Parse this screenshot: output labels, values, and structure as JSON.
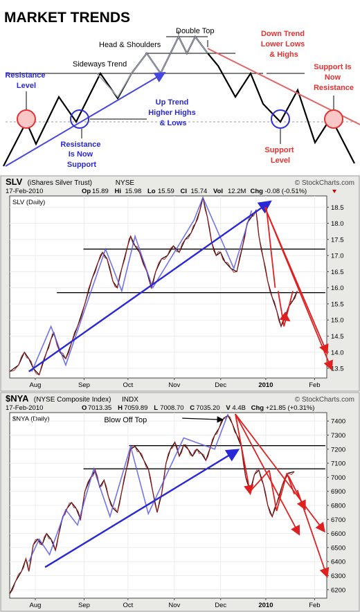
{
  "title": "MARKET TRENDS",
  "diagram": {
    "labels": {
      "double_top": "Double Top",
      "head_shoulders": "Head & Shoulders",
      "sideways": "Sideways Trend",
      "resistance_level": [
        "Resistance",
        "Level"
      ],
      "res_now_support": [
        "Resistance",
        "Is Now",
        "Support"
      ],
      "up_trend": [
        "Up Trend",
        "Higher Highs",
        "& Lows"
      ],
      "down_trend": [
        "Down Trend",
        "Lower Lows",
        "& Highs"
      ],
      "support_level": [
        "Support",
        "Level"
      ],
      "support_now_res": [
        "Support Is",
        "Now",
        "Resistance"
      ]
    },
    "colors": {
      "blue": "#2828d8",
      "red": "#e83030",
      "circle_fill": "#f6b8b8"
    }
  },
  "chart_data": [
    {
      "type": "line",
      "symbol": "SLV",
      "header": {
        "title": "SLV",
        "subtitle": "(iShares Silver Trust)",
        "exchange": "NYSE",
        "date": "17-Feb-2010",
        "brand": "© StockCharts.com",
        "quote": [
          {
            "k": "Op",
            "v": "15.89"
          },
          {
            "k": "Hi",
            "v": "15.98"
          },
          {
            "k": "Lo",
            "v": "15.59"
          },
          {
            "k": "Cl",
            "v": "15.74"
          },
          {
            "k": "Vol",
            "v": "12.2M"
          },
          {
            "k": "Chg",
            "v": "-0.08 (-0.51%)"
          }
        ]
      },
      "legend": "SLV (Daily)",
      "yticks": [
        "18.5",
        "18.0",
        "17.5",
        "17.0",
        "16.5",
        "16.0",
        "15.5",
        "15.0",
        "14.5",
        "14.0",
        "13.5"
      ],
      "ylim": [
        13.2,
        18.85
      ],
      "xticks": [
        "Aug",
        "Sep",
        "Oct",
        "Nov",
        "Dec",
        "2010",
        "Feb"
      ],
      "x_domain": [
        0,
        215
      ],
      "xtick_pos": [
        21,
        61,
        97,
        135,
        173,
        210,
        250
      ],
      "price": [
        [
          0,
          13.4
        ],
        [
          6,
          13.6
        ],
        [
          10,
          14.0
        ],
        [
          13,
          13.8
        ],
        [
          16,
          13.5
        ],
        [
          20,
          13.3
        ],
        [
          25,
          14.0
        ],
        [
          28,
          14.4
        ],
        [
          30,
          14.6
        ],
        [
          34,
          14.0
        ],
        [
          38,
          13.8
        ],
        [
          42,
          14.3
        ],
        [
          46,
          14.8
        ],
        [
          51,
          15.5
        ],
        [
          56,
          16.3
        ],
        [
          60,
          16.8
        ],
        [
          63,
          17.1
        ],
        [
          66,
          16.9
        ],
        [
          70,
          16.2
        ],
        [
          73,
          16.0
        ],
        [
          76,
          16.6
        ],
        [
          80,
          17.3
        ],
        [
          82,
          17.6
        ],
        [
          85,
          17.3
        ],
        [
          88,
          17.1
        ],
        [
          93,
          16.5
        ],
        [
          96,
          16.0
        ],
        [
          99,
          16.5
        ],
        [
          103,
          16.9
        ],
        [
          107,
          17.0
        ],
        [
          111,
          17.3
        ],
        [
          115,
          17.1
        ],
        [
          119,
          17.5
        ],
        [
          123,
          17.7
        ],
        [
          126,
          18.0
        ],
        [
          129,
          18.4
        ],
        [
          131,
          18.8
        ],
        [
          134,
          18.2
        ],
        [
          137,
          17.4
        ],
        [
          140,
          17.0
        ],
        [
          143,
          17.1
        ],
        [
          146,
          16.8
        ],
        [
          150,
          16.6
        ],
        [
          154,
          16.5
        ],
        [
          158,
          17.3
        ],
        [
          161,
          18.0
        ],
        [
          164,
          18.2
        ],
        [
          167,
          18.4
        ],
        [
          169,
          17.6
        ],
        [
          172,
          16.9
        ],
        [
          175,
          16.2
        ],
        [
          178,
          15.7
        ],
        [
          181,
          15.3
        ],
        [
          184,
          14.8
        ],
        [
          186,
          15.0
        ],
        [
          189,
          15.4
        ],
        [
          192,
          15.6
        ],
        [
          195,
          15.9
        ]
      ],
      "hlines": [
        {
          "y": 17.2,
          "x0": 50,
          "x1": 214
        },
        {
          "y": 15.85,
          "x0": 32,
          "x1": 214
        }
      ],
      "blue_swings": [
        [
          15,
          13.4
        ],
        [
          28,
          14.8
        ],
        [
          38,
          13.6
        ],
        [
          65,
          17.2
        ],
        [
          76,
          15.9
        ],
        [
          85,
          17.6
        ],
        [
          97,
          16.0
        ],
        [
          125,
          18.1
        ],
        [
          131,
          18.8
        ],
        [
          152,
          16.6
        ],
        [
          164,
          18.4
        ]
      ],
      "blue_trend": [
        [
          13,
          13.4
        ],
        [
          176,
          18.65
        ]
      ],
      "red_down": [
        [
          176,
          18.5
        ],
        [
          187,
          15.0
        ]
      ],
      "red_arrows": [
        {
          "from": [
            173,
            18.5
          ],
          "to": [
            215,
            14.0
          ]
        },
        {
          "from": [
            173,
            18.5
          ],
          "to": [
            218,
            13.5
          ]
        },
        {
          "from": [
            186,
            15.1
          ],
          "to": [
            189,
            15.0
          ]
        }
      ],
      "red_segments": [
        [
          [
            174,
            18.5
          ],
          [
            180,
            16.0
          ]
        ],
        [
          [
            182,
            15.9
          ],
          [
            186,
            14.8
          ]
        ],
        [
          [
            186,
            14.8
          ],
          [
            192,
            15.9
          ]
        ]
      ]
    },
    {
      "type": "line",
      "symbol": "$NYA",
      "header": {
        "title": "$NYA",
        "subtitle": "(NYSE Composite Index)",
        "exchange": "INDX",
        "date": "17-Feb-2010",
        "brand": "© StockCharts.com",
        "quote": [
          {
            "k": "O",
            "v": "7013.35"
          },
          {
            "k": "H",
            "v": "7059.89"
          },
          {
            "k": "L",
            "v": "7008.70"
          },
          {
            "k": "C",
            "v": "7035.20"
          },
          {
            "k": "V",
            "v": "4.4B"
          },
          {
            "k": "Chg",
            "v": "+21.85 (+0.31%)"
          }
        ]
      },
      "legend": "$NYA (Daily)",
      "annotation": "Blow Off Top",
      "yticks": [
        "7400",
        "7300",
        "7200",
        "7100",
        "7000",
        "6900",
        "6800",
        "6700",
        "6600",
        "6500",
        "6400",
        "6300",
        "6200"
      ],
      "ylim": [
        6140,
        7460
      ],
      "xticks": [
        "Aug",
        "Sep",
        "Oct",
        "Nov",
        "Dec",
        "2010",
        "Feb"
      ],
      "x_domain": [
        0,
        215
      ],
      "xtick_pos": [
        21,
        61,
        97,
        135,
        173,
        210,
        250
      ],
      "price": [
        [
          0,
          6170
        ],
        [
          4,
          6260
        ],
        [
          8,
          6330
        ],
        [
          11,
          6420
        ],
        [
          13,
          6330
        ],
        [
          16,
          6520
        ],
        [
          19,
          6560
        ],
        [
          22,
          6520
        ],
        [
          25,
          6600
        ],
        [
          28,
          6560
        ],
        [
          31,
          6480
        ],
        [
          33,
          6580
        ],
        [
          36,
          6720
        ],
        [
          39,
          6780
        ],
        [
          42,
          6820
        ],
        [
          45,
          6780
        ],
        [
          48,
          6700
        ],
        [
          51,
          6900
        ],
        [
          55,
          7000
        ],
        [
          58,
          7050
        ],
        [
          61,
          6930
        ],
        [
          64,
          6980
        ],
        [
          67,
          6860
        ],
        [
          70,
          6780
        ],
        [
          73,
          6750
        ],
        [
          76,
          6900
        ],
        [
          79,
          7050
        ],
        [
          82,
          7200
        ],
        [
          85,
          7220
        ],
        [
          88,
          7180
        ],
        [
          91,
          7120
        ],
        [
          94,
          7060
        ],
        [
          97,
          6900
        ],
        [
          100,
          6750
        ],
        [
          103,
          6880
        ],
        [
          106,
          7100
        ],
        [
          109,
          7200
        ],
        [
          112,
          7250
        ],
        [
          115,
          7150
        ],
        [
          118,
          7230
        ],
        [
          121,
          7200
        ],
        [
          124,
          7150
        ],
        [
          127,
          7200
        ],
        [
          130,
          7170
        ],
        [
          133,
          7120
        ],
        [
          136,
          7210
        ],
        [
          139,
          7300
        ],
        [
          142,
          7350
        ],
        [
          145,
          7420
        ],
        [
          148,
          7440
        ],
        [
          151,
          7380
        ],
        [
          154,
          7300
        ],
        [
          157,
          7220
        ],
        [
          160,
          7000
        ],
        [
          163,
          6900
        ],
        [
          166,
          7020
        ],
        [
          169,
          7050
        ],
        [
          172,
          6950
        ],
        [
          175,
          6800
        ],
        [
          178,
          6720
        ],
        [
          181,
          6810
        ],
        [
          185,
          6950
        ],
        [
          189,
          7030
        ],
        [
          193,
          7040
        ]
      ],
      "hlines": [
        {
          "y": 7225,
          "x0": 81,
          "x1": 214
        },
        {
          "y": 7060,
          "x0": 50,
          "x1": 214
        }
      ],
      "blue_swings": [
        [
          13,
          6400
        ],
        [
          20,
          6560
        ],
        [
          27,
          6450
        ],
        [
          38,
          6770
        ],
        [
          46,
          6660
        ],
        [
          57,
          7060
        ],
        [
          68,
          6720
        ],
        [
          82,
          7220
        ],
        [
          94,
          6740
        ],
        [
          118,
          7280
        ],
        [
          139,
          7200
        ],
        [
          148,
          7450
        ]
      ],
      "blue_trend": [
        [
          24,
          6360
        ],
        [
          154,
          7190
        ]
      ],
      "blow_arrow": {
        "from": [
          117,
          7420
        ],
        "to": [
          144,
          7410
        ]
      },
      "red_arrows": [
        {
          "from": [
            153,
            7450
          ],
          "to": [
            163,
            6890
          ]
        },
        {
          "from": [
            153,
            7450
          ],
          "to": [
            196,
            6600
          ]
        },
        {
          "from": [
            153,
            7450
          ],
          "to": [
            213,
            6620
          ]
        },
        {
          "from": [
            195,
            6910
          ],
          "to": [
            215,
            6300
          ]
        },
        {
          "from": [
            189,
            7010
          ],
          "to": [
            200,
            6780
          ]
        }
      ],
      "red_segments": [
        [
          [
            163,
            6900
          ],
          [
            176,
            7050
          ]
        ],
        [
          [
            176,
            7050
          ],
          [
            181,
            6760
          ]
        ],
        [
          [
            181,
            6760
          ],
          [
            188,
            7030
          ]
        ],
        [
          [
            188,
            7030
          ],
          [
            193,
            6880
          ]
        ]
      ]
    }
  ]
}
